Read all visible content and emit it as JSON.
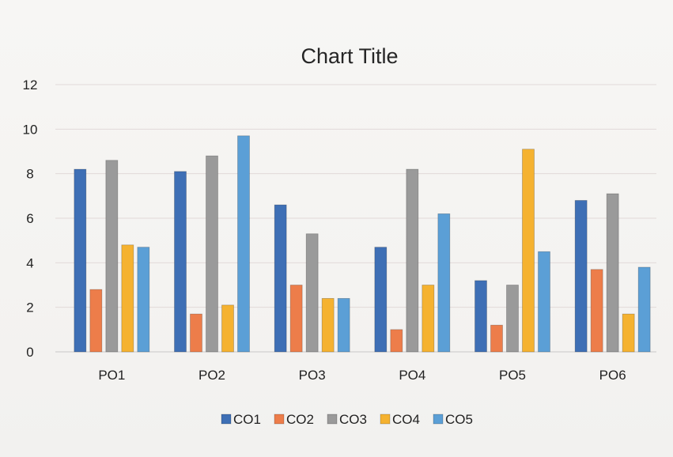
{
  "chart_data": {
    "type": "bar",
    "title": "Chart Title",
    "xlabel": "",
    "ylabel": "",
    "categories": [
      "PO1",
      "PO2",
      "PO3",
      "PO4",
      "PO5",
      "PO6"
    ],
    "ylim": [
      0,
      12
    ],
    "yticks": [
      0,
      2,
      4,
      6,
      8,
      10,
      12
    ],
    "grid": true,
    "legend_position": "bottom",
    "series": [
      {
        "name": "CO1",
        "color": "#3e6fb5",
        "values": [
          8.2,
          8.1,
          6.6,
          4.7,
          3.2,
          6.8
        ]
      },
      {
        "name": "CO2",
        "color": "#ed7d4a",
        "values": [
          2.8,
          1.7,
          3.0,
          1.0,
          1.2,
          3.7
        ]
      },
      {
        "name": "CO3",
        "color": "#9a9a9a",
        "values": [
          8.6,
          8.8,
          5.3,
          8.2,
          3.0,
          7.1
        ]
      },
      {
        "name": "CO4",
        "color": "#f5b230",
        "values": [
          4.8,
          2.1,
          2.4,
          3.0,
          9.1,
          1.7
        ]
      },
      {
        "name": "CO5",
        "color": "#5b9fd6",
        "values": [
          4.7,
          9.7,
          2.4,
          6.2,
          4.5,
          3.8
        ]
      }
    ]
  }
}
